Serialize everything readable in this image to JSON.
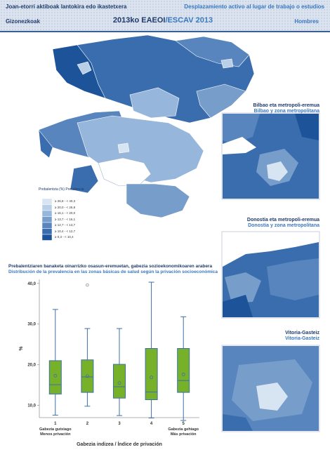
{
  "header": {
    "left_line1": "Joan-etorri aktiboak lantokira edo ikastetxera",
    "right_line1": "Desplazamiento activo al lugar de  trabajo o estudios",
    "left_line2": "Gizonezkoak",
    "center_a": "2013ko EAEOI",
    "center_sep": "/",
    "center_b": "ESCAV 2013",
    "right_line2": "Hombres"
  },
  "colors": {
    "header_navy": "#1f3a6b",
    "header_blue": "#3a78c0",
    "box_green": "#77b12a",
    "legend_classes": [
      "#d7e4f2",
      "#b9cfe7",
      "#97b6db",
      "#779dcb",
      "#5885bd",
      "#3a6dae",
      "#1d5399"
    ]
  },
  "legend": {
    "title": "Prebalentzia (%) Prevalencia",
    "classes": [
      "≥ 26,8 - < 40,3",
      "≥ 20,0 - < 26,8",
      "≥ 16,1 - < 20,0",
      "≥ 13,7 - < 16,1",
      "≥ 12,7 - < 13,7",
      "≥ 10,4 - < 12,7",
      "≥ 0,3 - < 10,4"
    ]
  },
  "insets": [
    {
      "title_eu": "Bilbao eta metropoli-eremua",
      "title_es": "Bilbao y zona metropolitana"
    },
    {
      "title_eu": "Donostia eta metropoli-eremua",
      "title_es": "Donostia y zona metropolitana"
    },
    {
      "title_eu": "Vitoria-Gasteiz",
      "title_es": "Vitoria-Gasteiz"
    }
  ],
  "chart_title": {
    "eu": "Prebalentziaren banaketa oinarrizko osasun-eremuetan, gabezia sozioekonomikoaren arabera",
    "es": "Distribución de la prevalencia en las zonas básicas de salud según la privación socioeconómica"
  },
  "chart_data": {
    "type": "box",
    "ylabel": "%",
    "xlabel": "Gabezia indizea / Índice de privación",
    "ylim": [
      7,
      41
    ],
    "yticks": [
      "10,0",
      "20,0",
      "30,0",
      "40,0"
    ],
    "categories": [
      "1",
      "2",
      "3",
      "4",
      "5"
    ],
    "category_notes": {
      "low": [
        "Gabezia gutxiago",
        "Menos privación"
      ],
      "high": [
        "Gabezia gehiago",
        "Más privación"
      ]
    },
    "boxes": [
      {
        "category": "1",
        "min": 7.6,
        "q1": 12.8,
        "median": 15.1,
        "q3": 21.0,
        "max": 33.6,
        "mean": 17.3,
        "outliers": []
      },
      {
        "category": "2",
        "min": 9.8,
        "q1": 13.2,
        "median": 17.0,
        "q3": 21.2,
        "max": 28.9,
        "mean": 17.2,
        "outliers": [
          39.6
        ]
      },
      {
        "category": "3",
        "min": 7.5,
        "q1": 11.8,
        "median": 14.6,
        "q3": 20.1,
        "max": 28.9,
        "mean": 15.5,
        "outliers": []
      },
      {
        "category": "4",
        "min": 6.9,
        "q1": 11.4,
        "median": 13.3,
        "q3": 24.0,
        "max": 40.3,
        "mean": 16.9,
        "outliers": []
      },
      {
        "category": "5",
        "min": 6.3,
        "q1": 13.2,
        "median": 16.1,
        "q3": 24.0,
        "max": 31.8,
        "mean": 17.6,
        "outliers": []
      }
    ]
  }
}
